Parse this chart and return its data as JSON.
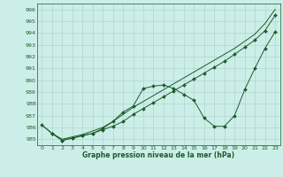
{
  "title": "",
  "xlabel": "Graphe pression niveau de la mer (hPa)",
  "background_color": "#cceee8",
  "grid_color": "#aacfc8",
  "line_color": "#1a5c2a",
  "ylim": [
    984.5,
    996.5
  ],
  "yticks": [
    985,
    986,
    987,
    988,
    989,
    990,
    991,
    992,
    993,
    994,
    995,
    996
  ],
  "xlim": [
    -0.5,
    23.5
  ],
  "xticks": [
    0,
    1,
    2,
    3,
    4,
    5,
    6,
    7,
    8,
    9,
    10,
    11,
    12,
    13,
    14,
    15,
    16,
    17,
    18,
    19,
    20,
    21,
    22,
    23
  ],
  "line1_x": [
    0,
    1,
    2,
    3,
    4,
    5,
    6,
    7,
    8,
    9,
    10,
    11,
    12,
    13,
    14,
    15,
    16,
    17,
    18,
    19,
    20,
    21,
    22,
    23
  ],
  "line1_y": [
    986.2,
    985.5,
    984.9,
    985.1,
    985.3,
    985.5,
    985.8,
    986.1,
    986.5,
    987.1,
    987.6,
    988.1,
    988.6,
    989.1,
    989.6,
    990.1,
    990.6,
    991.1,
    991.6,
    992.2,
    992.8,
    993.4,
    994.2,
    995.5
  ],
  "line2_x": [
    1,
    2,
    3,
    4,
    5,
    6,
    7,
    8,
    9,
    10,
    11,
    12,
    13,
    14,
    15,
    16,
    17,
    18,
    19,
    20,
    21,
    22,
    23
  ],
  "line2_y": [
    985.5,
    984.9,
    985.1,
    985.3,
    985.5,
    985.9,
    986.5,
    987.3,
    987.8,
    989.3,
    989.5,
    989.6,
    989.3,
    988.8,
    988.3,
    986.8,
    986.1,
    986.1,
    987.0,
    989.2,
    991.0,
    992.7,
    994.1
  ],
  "line3_x": [
    0,
    1,
    2,
    3,
    4,
    5,
    6,
    7,
    8,
    9,
    10,
    11,
    12,
    13,
    14,
    15,
    16,
    17,
    18,
    19,
    20,
    21,
    22,
    23
  ],
  "line3_y": [
    986.2,
    985.5,
    985.0,
    985.2,
    985.4,
    985.7,
    986.0,
    986.5,
    987.1,
    987.7,
    988.2,
    988.7,
    989.2,
    989.7,
    990.2,
    990.7,
    991.2,
    991.7,
    992.2,
    992.7,
    993.3,
    993.9,
    994.8,
    996.0
  ]
}
